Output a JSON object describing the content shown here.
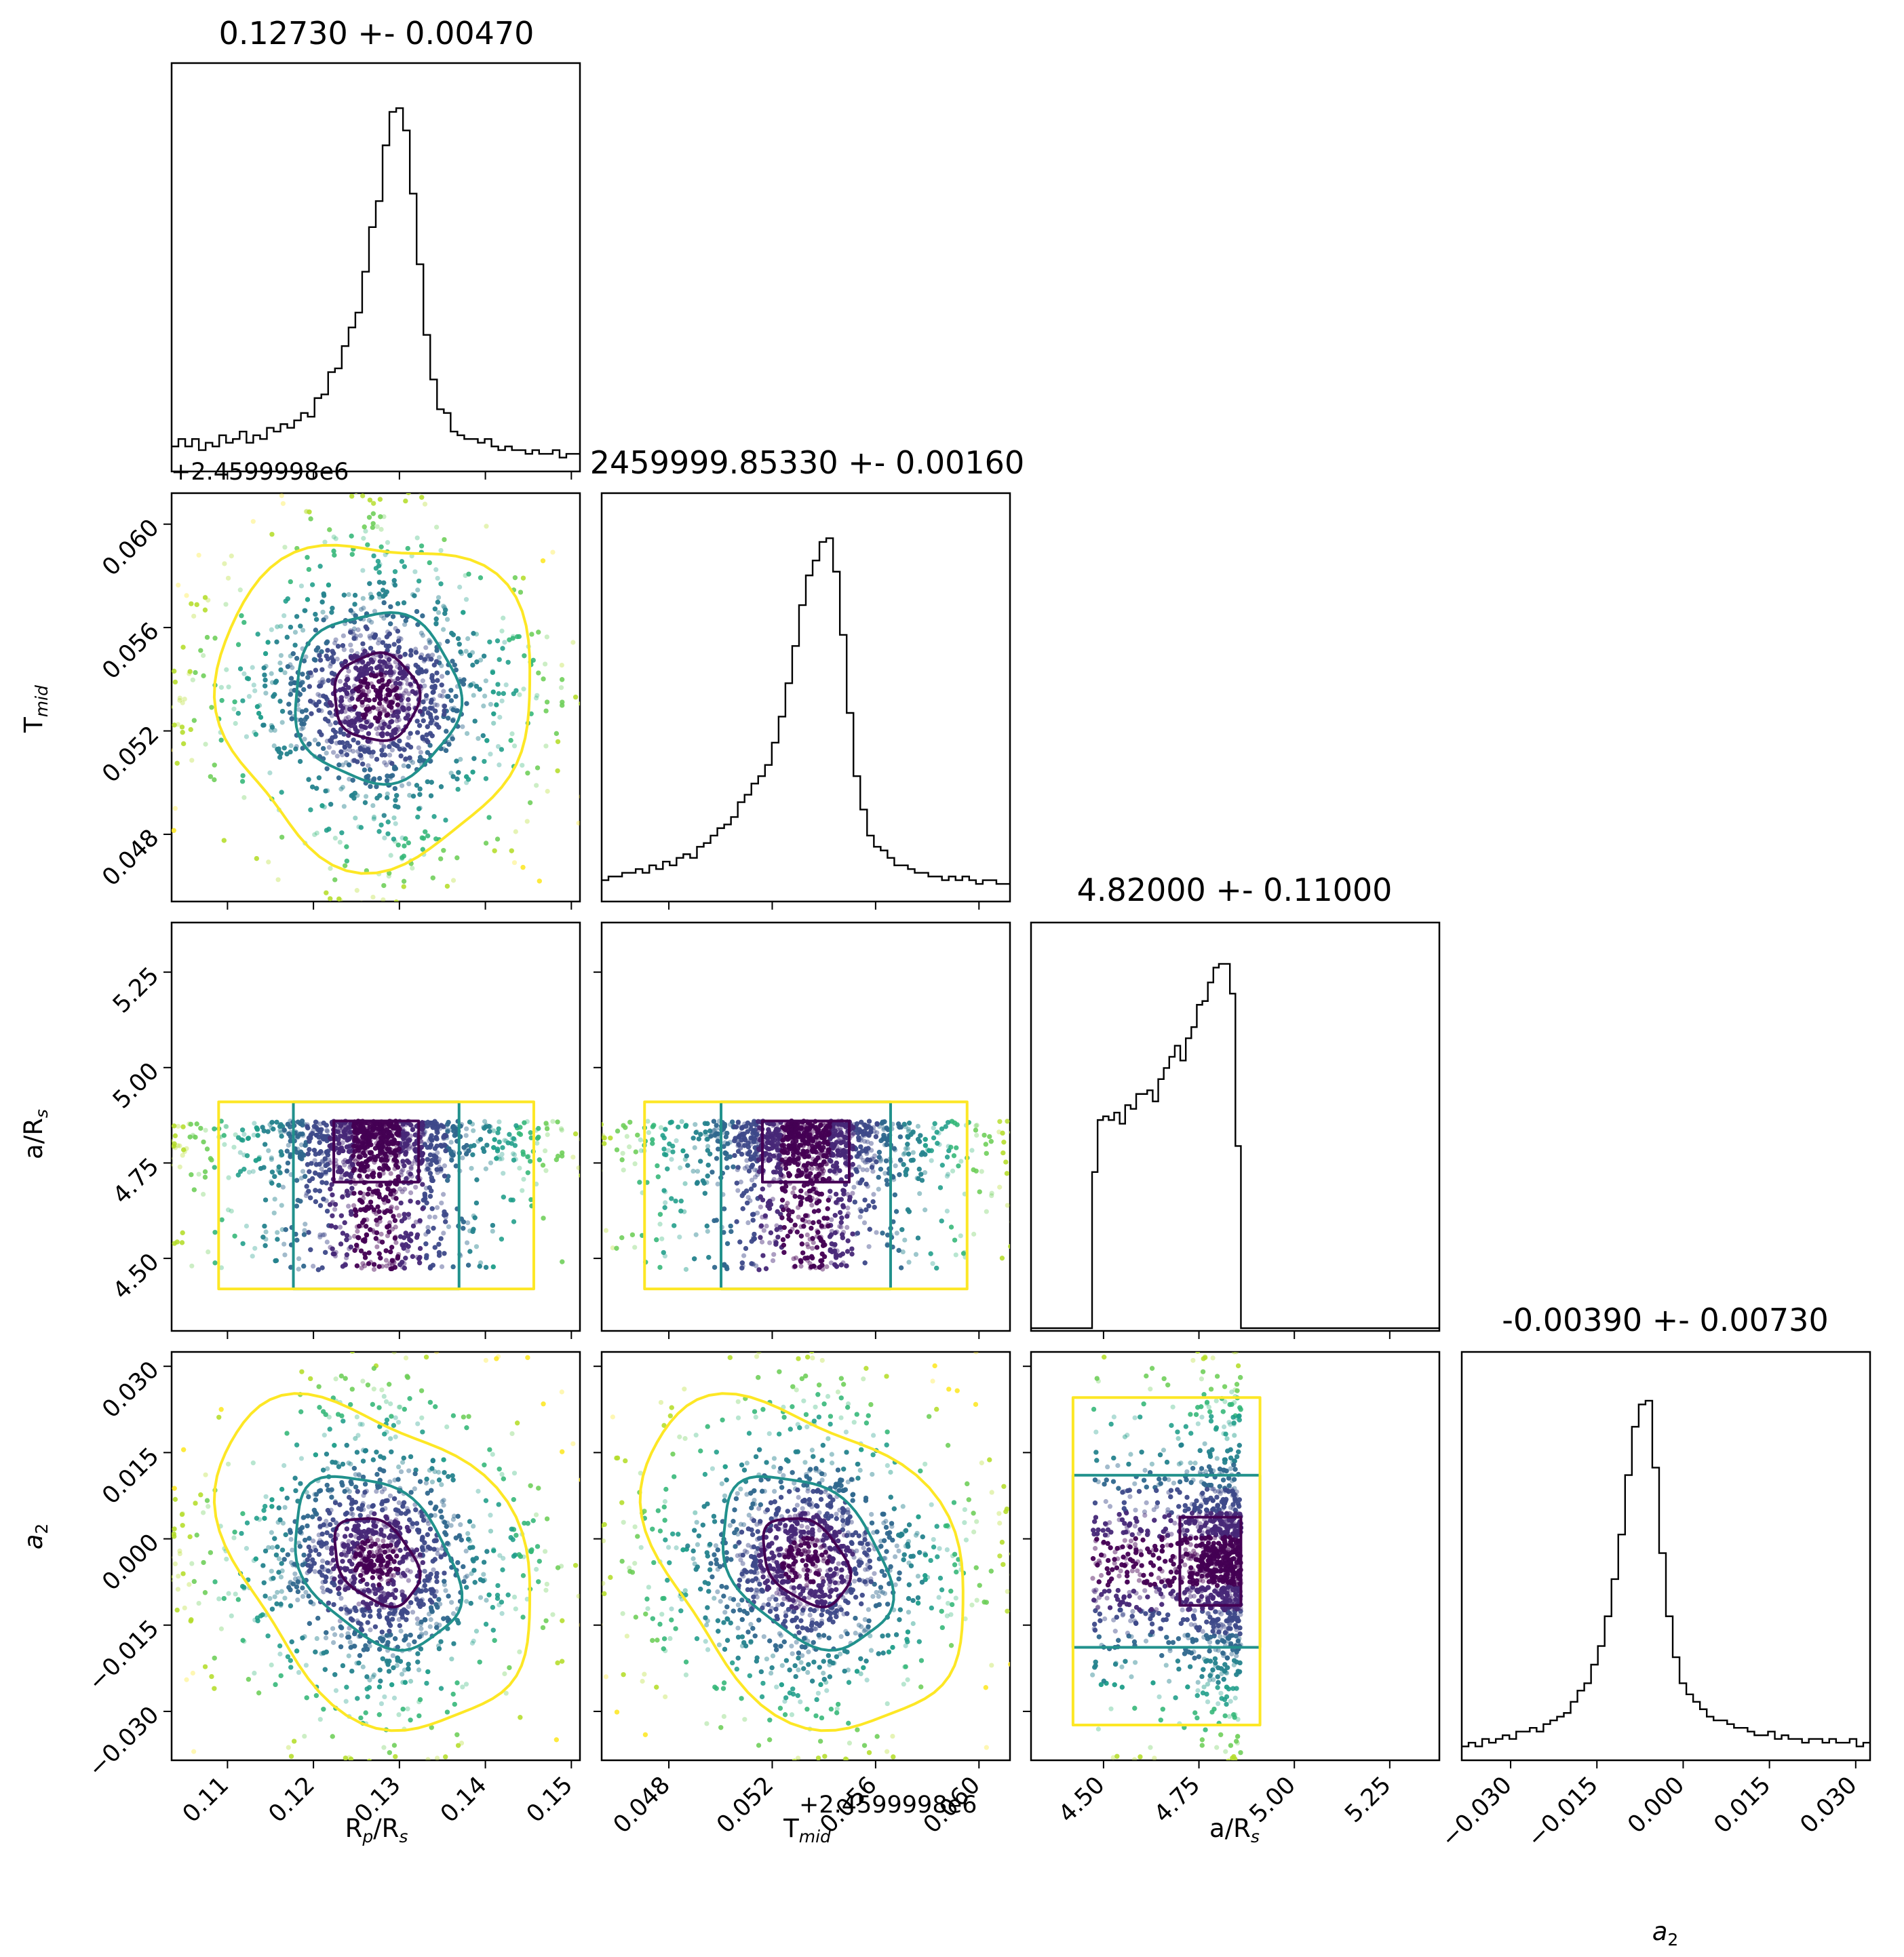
{
  "chart_data": {
    "type": "corner",
    "parameters": [
      {
        "key": "rp",
        "xlabel": "R_p/R_s",
        "ylabel": "",
        "title": "0.12730 +- 0.00470",
        "median": 0.1273,
        "sigma": 0.0047,
        "range": [
          0.1035,
          0.151
        ],
        "ticks": [
          0.11,
          0.12,
          0.13,
          0.14,
          0.15
        ],
        "tick_labels": [
          "0.11",
          "0.12",
          "0.13",
          "0.14",
          "0.15"
        ],
        "offset_text": "",
        "hist": [
          0.06,
          0.08,
          0.06,
          0.08,
          0.05,
          0.07,
          0.06,
          0.09,
          0.07,
          0.08,
          0.1,
          0.07,
          0.09,
          0.08,
          0.11,
          0.1,
          0.12,
          0.11,
          0.13,
          0.15,
          0.14,
          0.19,
          0.2,
          0.26,
          0.27,
          0.33,
          0.38,
          0.42,
          0.53,
          0.65,
          0.72,
          0.87,
          0.96,
          0.97,
          0.91,
          0.74,
          0.55,
          0.36,
          0.24,
          0.16,
          0.15,
          0.1,
          0.09,
          0.08,
          0.08,
          0.07,
          0.08,
          0.06,
          0.05,
          0.06,
          0.05,
          0.05,
          0.04,
          0.05,
          0.04,
          0.04,
          0.05,
          0.03,
          0.04,
          0.04
        ]
      },
      {
        "key": "tmid",
        "xlabel": "T_mid",
        "ylabel": "T_mid",
        "title": "2459999.85330 +- 0.00160",
        "median": 0.0533,
        "sigma": 0.0016,
        "range": [
          0.0454,
          0.0612
        ],
        "ticks": [
          0.048,
          0.052,
          0.056,
          0.06
        ],
        "tick_labels": [
          "0.048",
          "0.052",
          "0.056",
          "0.060"
        ],
        "offset_text": "+2.4599998e6",
        "hist": [
          0.05,
          0.06,
          0.06,
          0.07,
          0.07,
          0.08,
          0.07,
          0.09,
          0.08,
          0.1,
          0.09,
          0.11,
          0.12,
          0.11,
          0.14,
          0.15,
          0.17,
          0.19,
          0.2,
          0.22,
          0.26,
          0.28,
          0.31,
          0.33,
          0.36,
          0.42,
          0.49,
          0.58,
          0.68,
          0.79,
          0.87,
          0.91,
          0.96,
          0.97,
          0.88,
          0.71,
          0.5,
          0.33,
          0.24,
          0.17,
          0.14,
          0.13,
          0.11,
          0.09,
          0.09,
          0.08,
          0.07,
          0.07,
          0.06,
          0.06,
          0.05,
          0.06,
          0.05,
          0.06,
          0.05,
          0.04,
          0.05,
          0.05,
          0.04,
          0.04
        ]
      },
      {
        "key": "ars",
        "xlabel": "a/R_s",
        "ylabel": "a/R_s",
        "title": "4.82000 +- 0.11000",
        "median": 4.82,
        "sigma": 0.11,
        "range": [
          4.31,
          5.38
        ],
        "ticks": [
          4.5,
          4.75,
          5.0,
          5.25
        ],
        "tick_labels": [
          "4.50",
          "4.75",
          "5.00",
          "5.25"
        ],
        "offset_text": "",
        "prior_bounds": [
          4.47,
          4.86
        ],
        "hist": [
          0.42,
          0.56,
          0.57,
          0.56,
          0.58,
          0.55,
          0.6,
          0.59,
          0.63,
          0.63,
          0.64,
          0.61,
          0.67,
          0.7,
          0.73,
          0.76,
          0.72,
          0.78,
          0.81,
          0.87,
          0.88,
          0.93,
          0.97,
          0.98,
          0.98,
          0.9,
          0.49
        ]
      },
      {
        "key": "a2",
        "xlabel": "a_2",
        "ylabel": "a_2",
        "title": "-0.00390 +- 0.00730",
        "median": -0.0039,
        "sigma": 0.0073,
        "range": [
          -0.0385,
          0.0325
        ],
        "ticks": [
          -0.03,
          -0.015,
          0.0,
          0.015,
          0.03
        ],
        "tick_labels": [
          "−0.030",
          "−0.015",
          "0.000",
          "0.015",
          "0.030"
        ],
        "offset_text": "",
        "hist": [
          0.03,
          0.04,
          0.03,
          0.05,
          0.04,
          0.05,
          0.06,
          0.05,
          0.07,
          0.07,
          0.08,
          0.07,
          0.09,
          0.1,
          0.11,
          0.12,
          0.15,
          0.18,
          0.2,
          0.25,
          0.3,
          0.38,
          0.48,
          0.6,
          0.76,
          0.89,
          0.95,
          0.96,
          0.78,
          0.55,
          0.38,
          0.27,
          0.2,
          0.17,
          0.15,
          0.13,
          0.11,
          0.1,
          0.1,
          0.09,
          0.08,
          0.08,
          0.07,
          0.06,
          0.06,
          0.07,
          0.05,
          0.06,
          0.05,
          0.05,
          0.04,
          0.05,
          0.05,
          0.04,
          0.05,
          0.04,
          0.04,
          0.05,
          0.03,
          0.04
        ]
      }
    ],
    "offset_text_top": "+2.4599998e6",
    "contour_colors": [
      "#440154",
      "#21918c",
      "#fde725"
    ],
    "scatter_colormap": "viridis"
  }
}
